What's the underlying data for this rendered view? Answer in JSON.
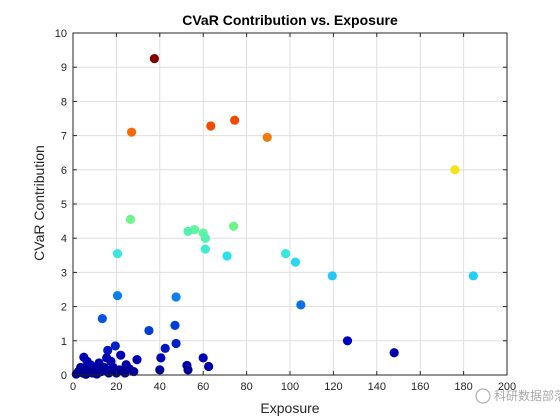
{
  "chart_data": {
    "type": "scatter",
    "title": "CVaR Contribution vs. Exposure",
    "xlabel": "Exposure",
    "ylabel": "CVaR Contribution",
    "xlim": [
      0,
      200
    ],
    "ylim": [
      0,
      10
    ],
    "xticks": [
      "0",
      "20",
      "40",
      "60",
      "80",
      "100",
      "120",
      "140",
      "160",
      "180",
      "200"
    ],
    "yticks": [
      "0",
      "1",
      "2",
      "3",
      "4",
      "5",
      "6",
      "7",
      "8",
      "9",
      "10"
    ],
    "grid": true,
    "colormap": "jet",
    "points": [
      {
        "x": 37.5,
        "y": 9.25,
        "color": "#800000"
      },
      {
        "x": 74.5,
        "y": 7.45,
        "color": "#ee4b00"
      },
      {
        "x": 63.5,
        "y": 7.28,
        "color": "#ee4b00"
      },
      {
        "x": 27.0,
        "y": 7.1,
        "color": "#f56a06"
      },
      {
        "x": 89.5,
        "y": 6.95,
        "color": "#f07a10"
      },
      {
        "x": 176.0,
        "y": 6.0,
        "color": "#f7e215"
      },
      {
        "x": 26.5,
        "y": 4.55,
        "color": "#70f48a"
      },
      {
        "x": 74.0,
        "y": 4.35,
        "color": "#70f48a"
      },
      {
        "x": 56.0,
        "y": 4.25,
        "color": "#60f6a0"
      },
      {
        "x": 53.0,
        "y": 4.2,
        "color": "#55f0b0"
      },
      {
        "x": 60.0,
        "y": 4.15,
        "color": "#60f6a0"
      },
      {
        "x": 61.0,
        "y": 4.0,
        "color": "#55f0b0"
      },
      {
        "x": 61.0,
        "y": 3.68,
        "color": "#40ecd0"
      },
      {
        "x": 20.5,
        "y": 3.55,
        "color": "#38e8e0"
      },
      {
        "x": 98.0,
        "y": 3.55,
        "color": "#38e8e0"
      },
      {
        "x": 71.0,
        "y": 3.48,
        "color": "#30e0e8"
      },
      {
        "x": 102.5,
        "y": 3.3,
        "color": "#28d8f0"
      },
      {
        "x": 119.5,
        "y": 2.9,
        "color": "#20c8f5"
      },
      {
        "x": 184.5,
        "y": 2.9,
        "color": "#20d0f0"
      },
      {
        "x": 20.5,
        "y": 2.32,
        "color": "#0a80f0"
      },
      {
        "x": 47.5,
        "y": 2.28,
        "color": "#0a80f0"
      },
      {
        "x": 105.0,
        "y": 2.05,
        "color": "#0a70ea"
      },
      {
        "x": 13.5,
        "y": 1.65,
        "color": "#0a55e0"
      },
      {
        "x": 47.0,
        "y": 1.45,
        "color": "#0040d8"
      },
      {
        "x": 35.0,
        "y": 1.3,
        "color": "#0040d8"
      },
      {
        "x": 126.5,
        "y": 1.0,
        "color": "#0000c8"
      },
      {
        "x": 47.5,
        "y": 0.92,
        "color": "#0020c8"
      },
      {
        "x": 19.5,
        "y": 0.85,
        "color": "#0020c8"
      },
      {
        "x": 42.5,
        "y": 0.78,
        "color": "#0015c0"
      },
      {
        "x": 16.0,
        "y": 0.72,
        "color": "#0015c0"
      },
      {
        "x": 148.0,
        "y": 0.65,
        "color": "#0000b0"
      },
      {
        "x": 22.0,
        "y": 0.58,
        "color": "#0000b8"
      },
      {
        "x": 5.0,
        "y": 0.52,
        "color": "#0000b8"
      },
      {
        "x": 15.5,
        "y": 0.5,
        "color": "#0000b8"
      },
      {
        "x": 40.5,
        "y": 0.5,
        "color": "#0000b8"
      },
      {
        "x": 60.0,
        "y": 0.5,
        "color": "#0000b8"
      },
      {
        "x": 29.5,
        "y": 0.45,
        "color": "#0000b0"
      },
      {
        "x": 6.5,
        "y": 0.4,
        "color": "#0000b0"
      },
      {
        "x": 17.5,
        "y": 0.4,
        "color": "#0000b0"
      },
      {
        "x": 12.0,
        "y": 0.35,
        "color": "#0000a8"
      },
      {
        "x": 8.0,
        "y": 0.3,
        "color": "#0000a8"
      },
      {
        "x": 24.5,
        "y": 0.3,
        "color": "#0000a8"
      },
      {
        "x": 52.5,
        "y": 0.28,
        "color": "#0000a8"
      },
      {
        "x": 62.5,
        "y": 0.25,
        "color": "#0000a8"
      },
      {
        "x": 3.5,
        "y": 0.22,
        "color": "#0000a0"
      },
      {
        "x": 14.5,
        "y": 0.22,
        "color": "#0000a0"
      },
      {
        "x": 18.5,
        "y": 0.22,
        "color": "#0000a0"
      },
      {
        "x": 10.0,
        "y": 0.18,
        "color": "#0000a0"
      },
      {
        "x": 26.0,
        "y": 0.18,
        "color": "#0000a0"
      },
      {
        "x": 5.5,
        "y": 0.15,
        "color": "#000098"
      },
      {
        "x": 21.5,
        "y": 0.15,
        "color": "#000098"
      },
      {
        "x": 40.0,
        "y": 0.15,
        "color": "#000098"
      },
      {
        "x": 53.0,
        "y": 0.15,
        "color": "#000098"
      },
      {
        "x": 2.5,
        "y": 0.1,
        "color": "#000098"
      },
      {
        "x": 7.5,
        "y": 0.1,
        "color": "#000098"
      },
      {
        "x": 13.0,
        "y": 0.1,
        "color": "#000098"
      },
      {
        "x": 28.0,
        "y": 0.1,
        "color": "#000098"
      },
      {
        "x": 4.5,
        "y": 0.06,
        "color": "#000090"
      },
      {
        "x": 9.0,
        "y": 0.06,
        "color": "#000090"
      },
      {
        "x": 16.5,
        "y": 0.06,
        "color": "#000090"
      },
      {
        "x": 20.0,
        "y": 0.06,
        "color": "#000090"
      },
      {
        "x": 24.0,
        "y": 0.06,
        "color": "#000090"
      },
      {
        "x": 1.5,
        "y": 0.03,
        "color": "#000090"
      },
      {
        "x": 11.0,
        "y": 0.03,
        "color": "#000090"
      },
      {
        "x": 6.0,
        "y": 0.02,
        "color": "#000090"
      }
    ]
  },
  "watermark": {
    "text": "科研数据部落"
  }
}
